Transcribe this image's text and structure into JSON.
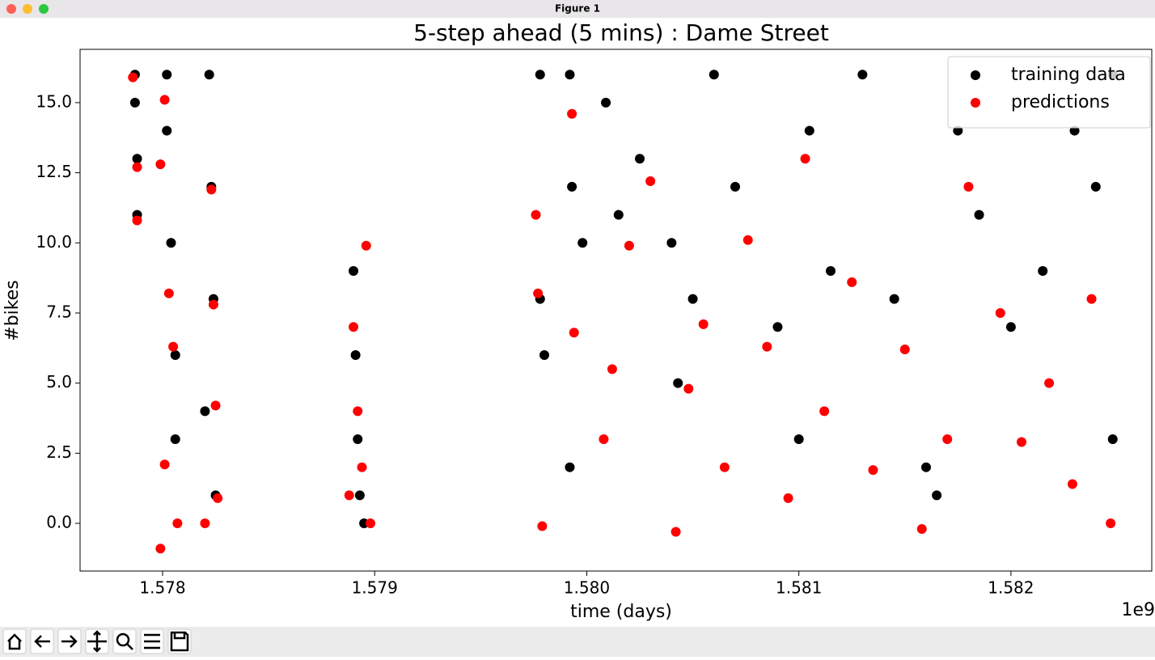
{
  "window": {
    "title": "Figure 1"
  },
  "chart_data": {
    "type": "scatter",
    "title": "5-step ahead (5 mins) : Dame Street",
    "x_label": "time (days)",
    "y_label": "#bikes",
    "x_offset_label": "1e9",
    "xlim": [
      1577611000,
      1582664000
    ],
    "ylim": [
      -1.7,
      16.9
    ],
    "xticks": [
      {
        "value": 1578000000,
        "label": "1.578"
      },
      {
        "value": 1579000000,
        "label": "1.579"
      },
      {
        "value": 1580000000,
        "label": "1.580"
      },
      {
        "value": 1581000000,
        "label": "1.581"
      },
      {
        "value": 1582000000,
        "label": "1.582"
      }
    ],
    "yticks": [
      {
        "value": 0,
        "label": "0.0"
      },
      {
        "value": 2.5,
        "label": "2.5"
      },
      {
        "value": 5,
        "label": "5.0"
      },
      {
        "value": 7.5,
        "label": "7.5"
      },
      {
        "value": 10,
        "label": "10.0"
      },
      {
        "value": 12.5,
        "label": "12.5"
      },
      {
        "value": 15,
        "label": "15.0"
      }
    ],
    "legend": "upper right",
    "series": [
      {
        "name": "training data",
        "color": "#000000",
        "x": [
          1577870000,
          1577870000,
          1577880000,
          1577880000,
          1578020000,
          1578020000,
          1578040000,
          1578060000,
          1578060000,
          1578220000,
          1578230000,
          1578240000,
          1578200000,
          1578250000,
          1578900000,
          1578910000,
          1578920000,
          1578930000,
          1578950000,
          1579980000,
          1579780000,
          1579780000,
          1579800000,
          1579920000,
          1579930000,
          1579920000,
          1580090000,
          1580150000,
          1580250000,
          1580400000,
          1580430000,
          1580500000,
          1580600000,
          1580700000,
          1580900000,
          1581000000,
          1581050000,
          1581150000,
          1581300000,
          1581450000,
          1581600000,
          1581650000,
          1581750000,
          1581850000,
          1582000000,
          1582150000,
          1582300000,
          1582400000,
          1582480000,
          1582480000
        ],
        "values": [
          16,
          15,
          13,
          11,
          16,
          14,
          10,
          6,
          3,
          16,
          12,
          8,
          4,
          1,
          9,
          6,
          3,
          1,
          0,
          10,
          16,
          8,
          6,
          16,
          12,
          2,
          15,
          11,
          13,
          10,
          5,
          8,
          16,
          12,
          7,
          3,
          14,
          9,
          16,
          8,
          2,
          1,
          14,
          11,
          7,
          9,
          14,
          12,
          3,
          16
        ]
      },
      {
        "name": "predictions",
        "color": "#ff0000",
        "x": [
          1577860000,
          1577880000,
          1577880000,
          1577990000,
          1577990000,
          1578010000,
          1578030000,
          1578050000,
          1578010000,
          1578070000,
          1578230000,
          1578250000,
          1578240000,
          1578260000,
          1578200000,
          1578880000,
          1578900000,
          1578920000,
          1578940000,
          1578960000,
          1578980000,
          1579760000,
          1579770000,
          1579790000,
          1579930000,
          1579940000,
          1580080000,
          1580120000,
          1580200000,
          1580300000,
          1580420000,
          1580480000,
          1580550000,
          1580650000,
          1580760000,
          1580850000,
          1580950000,
          1581030000,
          1581120000,
          1581250000,
          1581350000,
          1581500000,
          1581580000,
          1581700000,
          1581800000,
          1581950000,
          1582050000,
          1582180000,
          1582290000,
          1582380000,
          1582470000
        ],
        "values": [
          15.9,
          12.7,
          10.8,
          -0.9,
          12.8,
          15.1,
          8.2,
          6.3,
          2.1,
          0.0,
          11.9,
          4.2,
          7.8,
          0.9,
          0.0,
          1.0,
          7.0,
          4.0,
          2.0,
          9.9,
          0.0,
          11.0,
          8.2,
          -0.1,
          14.6,
          6.8,
          3.0,
          5.5,
          9.9,
          12.2,
          -0.3,
          4.8,
          7.1,
          2.0,
          10.1,
          6.3,
          0.9,
          13.0,
          4.0,
          8.6,
          1.9,
          6.2,
          -0.2,
          3.0,
          12.0,
          7.5,
          2.9,
          5.0,
          1.4,
          8.0,
          0.0
        ]
      }
    ]
  }
}
